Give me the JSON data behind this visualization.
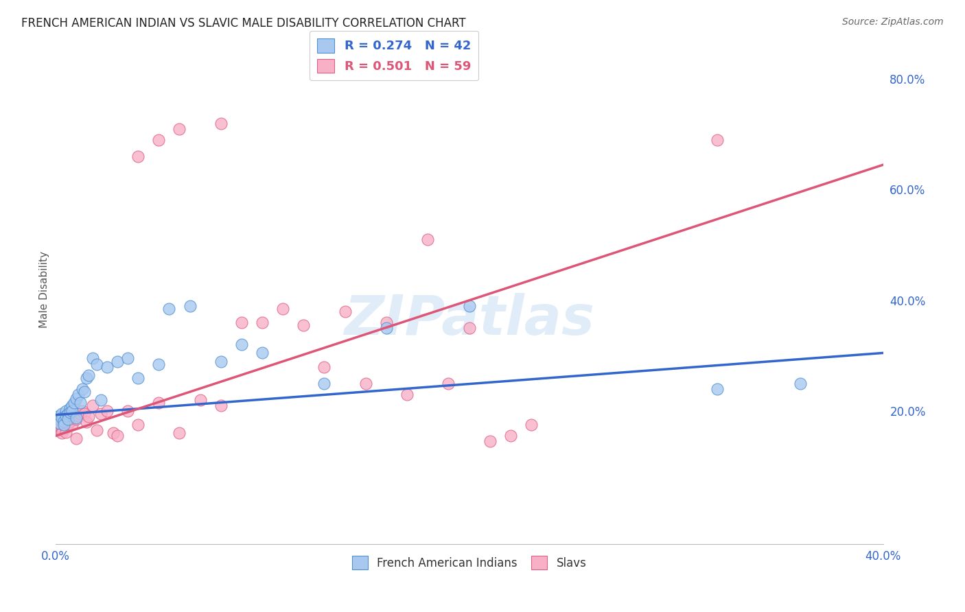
{
  "title": "FRENCH AMERICAN INDIAN VS SLAVIC MALE DISABILITY CORRELATION CHART",
  "source": "Source: ZipAtlas.com",
  "ylabel": "Male Disability",
  "xlim": [
    0.0,
    0.4
  ],
  "ylim": [
    -0.04,
    0.88
  ],
  "yticks": [
    0.2,
    0.4,
    0.6,
    0.8
  ],
  "ytick_labels": [
    "20.0%",
    "40.0%",
    "60.0%",
    "80.0%"
  ],
  "xticks": [
    0.0,
    0.1,
    0.2,
    0.3,
    0.4
  ],
  "xtick_labels": [
    "0.0%",
    "",
    "",
    "",
    "40.0%"
  ],
  "r_blue": 0.274,
  "n_blue": 42,
  "r_pink": 0.501,
  "n_pink": 59,
  "legend_label_blue": "French American Indians",
  "legend_label_pink": "Slavs",
  "watermark": "ZIPatlas",
  "blue_scatter_color": "#A8C8F0",
  "blue_edge_color": "#5090D0",
  "pink_scatter_color": "#F8B0C8",
  "pink_edge_color": "#E06080",
  "blue_line_color": "#3366CC",
  "pink_line_color": "#DD5577",
  "background_color": "#FFFFFF",
  "grid_color": "#DDDDDD",
  "blue_x": [
    0.001,
    0.002,
    0.002,
    0.003,
    0.003,
    0.004,
    0.004,
    0.005,
    0.005,
    0.006,
    0.006,
    0.007,
    0.007,
    0.008,
    0.008,
    0.009,
    0.01,
    0.01,
    0.011,
    0.012,
    0.013,
    0.014,
    0.015,
    0.016,
    0.018,
    0.02,
    0.022,
    0.025,
    0.03,
    0.035,
    0.04,
    0.05,
    0.055,
    0.065,
    0.08,
    0.09,
    0.1,
    0.13,
    0.16,
    0.2,
    0.32,
    0.36
  ],
  "blue_y": [
    0.19,
    0.185,
    0.178,
    0.195,
    0.188,
    0.182,
    0.175,
    0.2,
    0.192,
    0.195,
    0.185,
    0.205,
    0.198,
    0.21,
    0.2,
    0.215,
    0.222,
    0.188,
    0.23,
    0.215,
    0.24,
    0.235,
    0.26,
    0.265,
    0.295,
    0.285,
    0.22,
    0.28,
    0.29,
    0.295,
    0.26,
    0.285,
    0.385,
    0.39,
    0.29,
    0.32,
    0.305,
    0.25,
    0.35,
    0.39,
    0.24,
    0.25
  ],
  "pink_x": [
    0.001,
    0.001,
    0.001,
    0.002,
    0.002,
    0.002,
    0.003,
    0.003,
    0.003,
    0.004,
    0.004,
    0.005,
    0.005,
    0.006,
    0.006,
    0.007,
    0.008,
    0.008,
    0.009,
    0.01,
    0.011,
    0.012,
    0.013,
    0.014,
    0.015,
    0.016,
    0.018,
    0.02,
    0.022,
    0.025,
    0.028,
    0.03,
    0.035,
    0.04,
    0.05,
    0.06,
    0.07,
    0.08,
    0.09,
    0.1,
    0.11,
    0.12,
    0.13,
    0.14,
    0.15,
    0.16,
    0.17,
    0.18,
    0.19,
    0.2,
    0.21,
    0.22,
    0.23,
    0.04,
    0.05,
    0.06,
    0.08,
    0.32,
    0.01
  ],
  "pink_y": [
    0.17,
    0.165,
    0.175,
    0.168,
    0.172,
    0.178,
    0.165,
    0.17,
    0.16,
    0.175,
    0.18,
    0.17,
    0.162,
    0.175,
    0.178,
    0.182,
    0.185,
    0.175,
    0.19,
    0.185,
    0.192,
    0.195,
    0.2,
    0.195,
    0.18,
    0.19,
    0.21,
    0.165,
    0.195,
    0.2,
    0.16,
    0.155,
    0.2,
    0.175,
    0.215,
    0.16,
    0.22,
    0.21,
    0.36,
    0.36,
    0.385,
    0.355,
    0.28,
    0.38,
    0.25,
    0.36,
    0.23,
    0.51,
    0.25,
    0.35,
    0.145,
    0.155,
    0.175,
    0.66,
    0.69,
    0.71,
    0.72,
    0.69,
    0.15
  ],
  "blue_line_x0": 0.0,
  "blue_line_y0": 0.193,
  "blue_line_x1": 0.4,
  "blue_line_y1": 0.305,
  "pink_line_x0": 0.0,
  "pink_line_y0": 0.155,
  "pink_line_x1": 0.4,
  "pink_line_y1": 0.645
}
